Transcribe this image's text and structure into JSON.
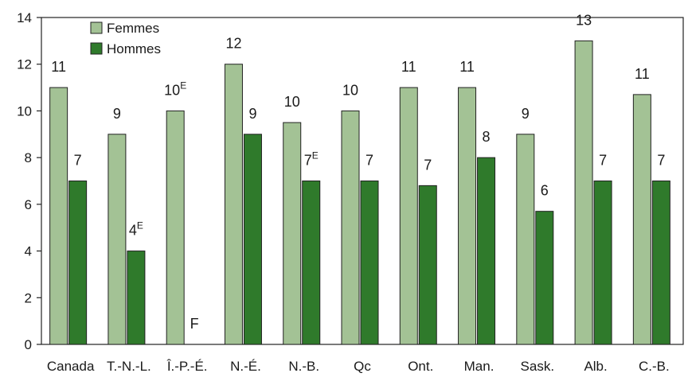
{
  "chart_data": {
    "type": "bar",
    "categories": [
      "Canada",
      "T.-N.-L.",
      "Î.-P.-É.",
      "N.-É.",
      "N.-B.",
      "Qc",
      "Ont.",
      "Man.",
      "Sask.",
      "Alb.",
      "C.-B."
    ],
    "series": [
      {
        "name": "Femmes",
        "color": "#a3c295",
        "values": [
          11,
          9,
          10,
          12,
          9.5,
          10,
          11,
          11,
          9,
          13,
          10.7
        ],
        "labels": [
          "11",
          "9",
          "10",
          "12",
          "10",
          "10",
          "11",
          "11",
          "9",
          "13",
          "11"
        ],
        "flags": [
          "",
          "",
          "E",
          "",
          "",
          "",
          "",
          "",
          "",
          "",
          ""
        ]
      },
      {
        "name": "Hommes",
        "color": "#2f7a2b",
        "values": [
          7,
          4,
          null,
          9,
          7,
          7,
          6.8,
          8,
          5.7,
          7,
          7
        ],
        "labels": [
          "7",
          "4",
          "F",
          "9",
          "7",
          "7",
          "7",
          "8",
          "6",
          "7",
          "7"
        ],
        "flags": [
          "",
          "E",
          "",
          "",
          "E",
          "",
          "",
          "",
          "",
          "",
          ""
        ]
      }
    ],
    "ylim": [
      0,
      14
    ],
    "yticks": [
      0,
      2,
      4,
      6,
      8,
      10,
      12,
      14
    ],
    "grid": false,
    "legend": "top-left"
  }
}
